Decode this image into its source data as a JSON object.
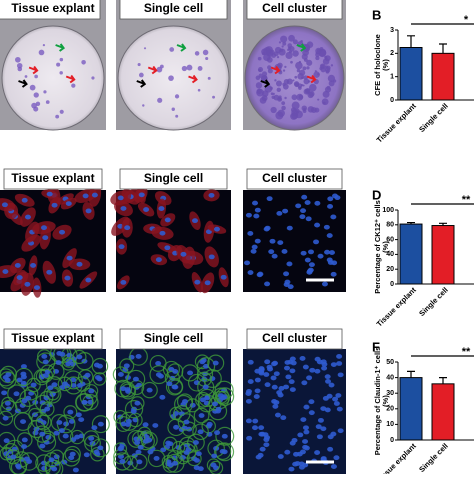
{
  "photos": {
    "rows": [
      {
        "labels": [
          "Tissue explant",
          "Single cell",
          "Cell cluster"
        ]
      },
      {
        "labels": [
          "Tissue explant",
          "Single cell",
          "Cell cluster"
        ]
      },
      {
        "labels": [
          "Tissue explant",
          "Single cell",
          "Cell cluster"
        ]
      }
    ]
  },
  "chart_data": [
    {
      "type": "bar",
      "panel": "B",
      "ylabel": [
        "CFE of holoclone",
        "(%)"
      ],
      "categories": [
        "Tissue explant",
        "Single cell"
      ],
      "values": [
        2.25,
        2.0
      ],
      "errors": [
        0.5,
        0.4
      ],
      "colors": [
        "#1c4fa0",
        "#e31e26"
      ],
      "ylim": [
        0,
        3
      ],
      "yticks": [
        0,
        1,
        2,
        3
      ],
      "annotation": "*"
    },
    {
      "type": "bar",
      "panel": "D",
      "ylabel": [
        "Percentage of CK12⁺ cells",
        "(%)"
      ],
      "categories": [
        "Tissue explant",
        "Single cell"
      ],
      "values": [
        81,
        79
      ],
      "errors": [
        2,
        3
      ],
      "colors": [
        "#1c4fa0",
        "#e31e26"
      ],
      "ylim": [
        0,
        100
      ],
      "yticks": [
        0,
        20,
        40,
        60,
        80,
        100
      ],
      "annotation": "**"
    },
    {
      "type": "bar",
      "panel": "F",
      "ylabel": [
        "Percentage of Claudin-1⁺ cells",
        "(%)"
      ],
      "categories": [
        "Tissue explant",
        "Single cell"
      ],
      "values": [
        40,
        36
      ],
      "errors": [
        4,
        4
      ],
      "colors": [
        "#1c4fa0",
        "#e31e26"
      ],
      "ylim": [
        0,
        50
      ],
      "yticks": [
        0,
        10,
        20,
        30,
        40,
        50
      ],
      "annotation": "**"
    }
  ]
}
